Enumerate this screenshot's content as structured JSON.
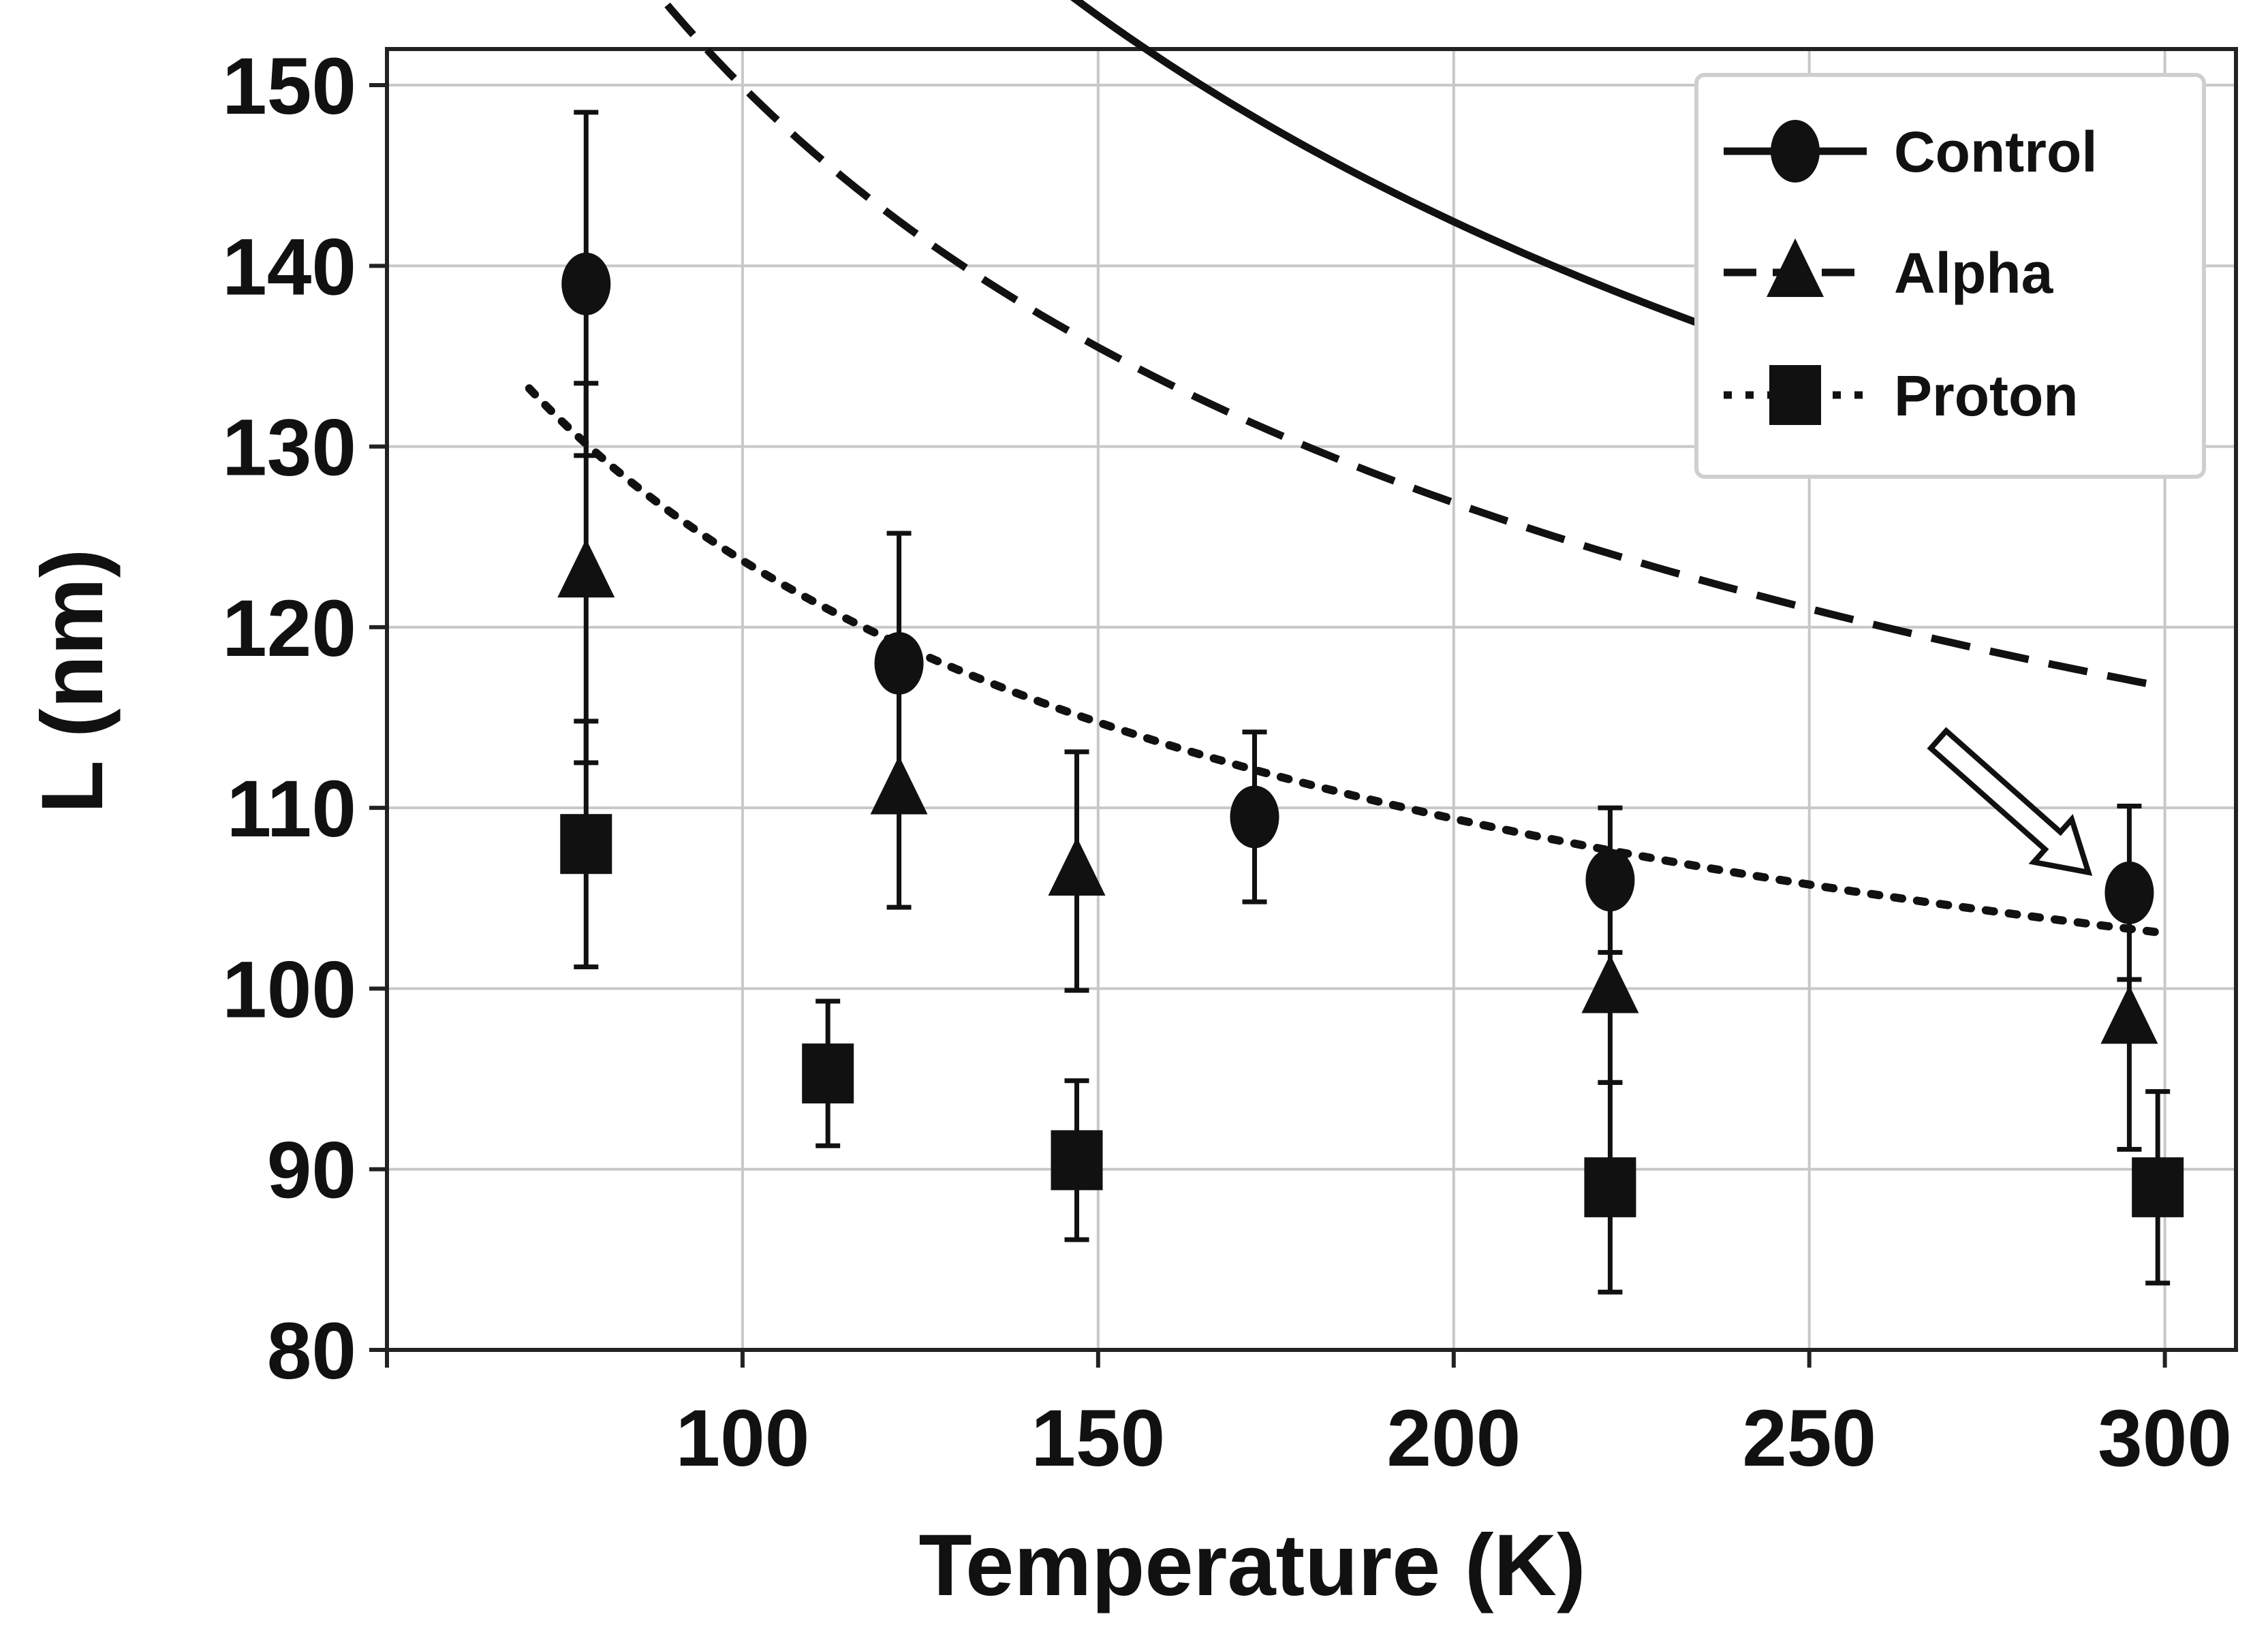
{
  "chart_data": {
    "type": "scatter",
    "xlabel": "Temperature (K)",
    "ylabel": "L (nm)",
    "xlim": [
      50,
      310
    ],
    "ylim": [
      80,
      152
    ],
    "xticks": [
      100,
      150,
      200,
      250,
      300
    ],
    "yticks": [
      80,
      90,
      100,
      110,
      120,
      130,
      140,
      150
    ],
    "grid": true,
    "legend_position": "top-right",
    "series": [
      {
        "name": "Control",
        "marker": "circle",
        "line_style": "solid",
        "points": [
          {
            "x": 78,
            "y": 139,
            "err_low": 9.5,
            "err_high": 9.5
          },
          {
            "x": 122,
            "y": 118,
            "err_low": 7.2,
            "err_high": 7.2
          },
          {
            "x": 172,
            "y": 109.5,
            "err_low": 4.7,
            "err_high": 4.7
          },
          {
            "x": 222,
            "y": 106,
            "err_low": 4,
            "err_high": 4
          },
          {
            "x": 295,
            "y": 105.3,
            "err_low": 4.8,
            "err_high": 4.8
          }
        ],
        "fit": {
          "a": 1041.5,
          "b": 68.8
        }
      },
      {
        "name": "Alpha",
        "marker": "triangle",
        "line_style": "dashed",
        "points": [
          {
            "x": 78,
            "y": 123,
            "err_low": 10.5,
            "err_high": 10.5
          },
          {
            "x": 122,
            "y": 111,
            "err_low": 6.5,
            "err_high": 6.5
          },
          {
            "x": 147,
            "y": 106.5,
            "err_low": 6.6,
            "err_high": 6.6
          },
          {
            "x": 222,
            "y": 100,
            "err_low": 5.2,
            "err_high": 5.2
          },
          {
            "x": 295,
            "y": 98.3,
            "err_low": 7.2,
            "err_high": 7.2
          }
        ],
        "fit": {
          "a": 786.2,
          "b": 71.3
        }
      },
      {
        "name": "Proton",
        "marker": "square",
        "line_style": "dotted",
        "points": [
          {
            "x": 78,
            "y": 108,
            "err_low": 6.8,
            "err_high": 6.8
          },
          {
            "x": 112,
            "y": 95.3,
            "err_low": 4,
            "err_high": 4
          },
          {
            "x": 147,
            "y": 90.5,
            "err_low": 4.4,
            "err_high": 4.4
          },
          {
            "x": 222,
            "y": 89,
            "err_low": 5.8,
            "err_high": 5.8
          },
          {
            "x": 299,
            "y": 89,
            "err_low": 5.3,
            "err_high": 5.3
          }
        ],
        "fit": {
          "a": 487.9,
          "b": 74.9
        }
      }
    ],
    "fit_x_range": [
      70,
      300
    ],
    "annotations": [
      {
        "kind": "hollow-arrow",
        "points_to_x": 295,
        "points_to_y": 105.3
      }
    ]
  }
}
